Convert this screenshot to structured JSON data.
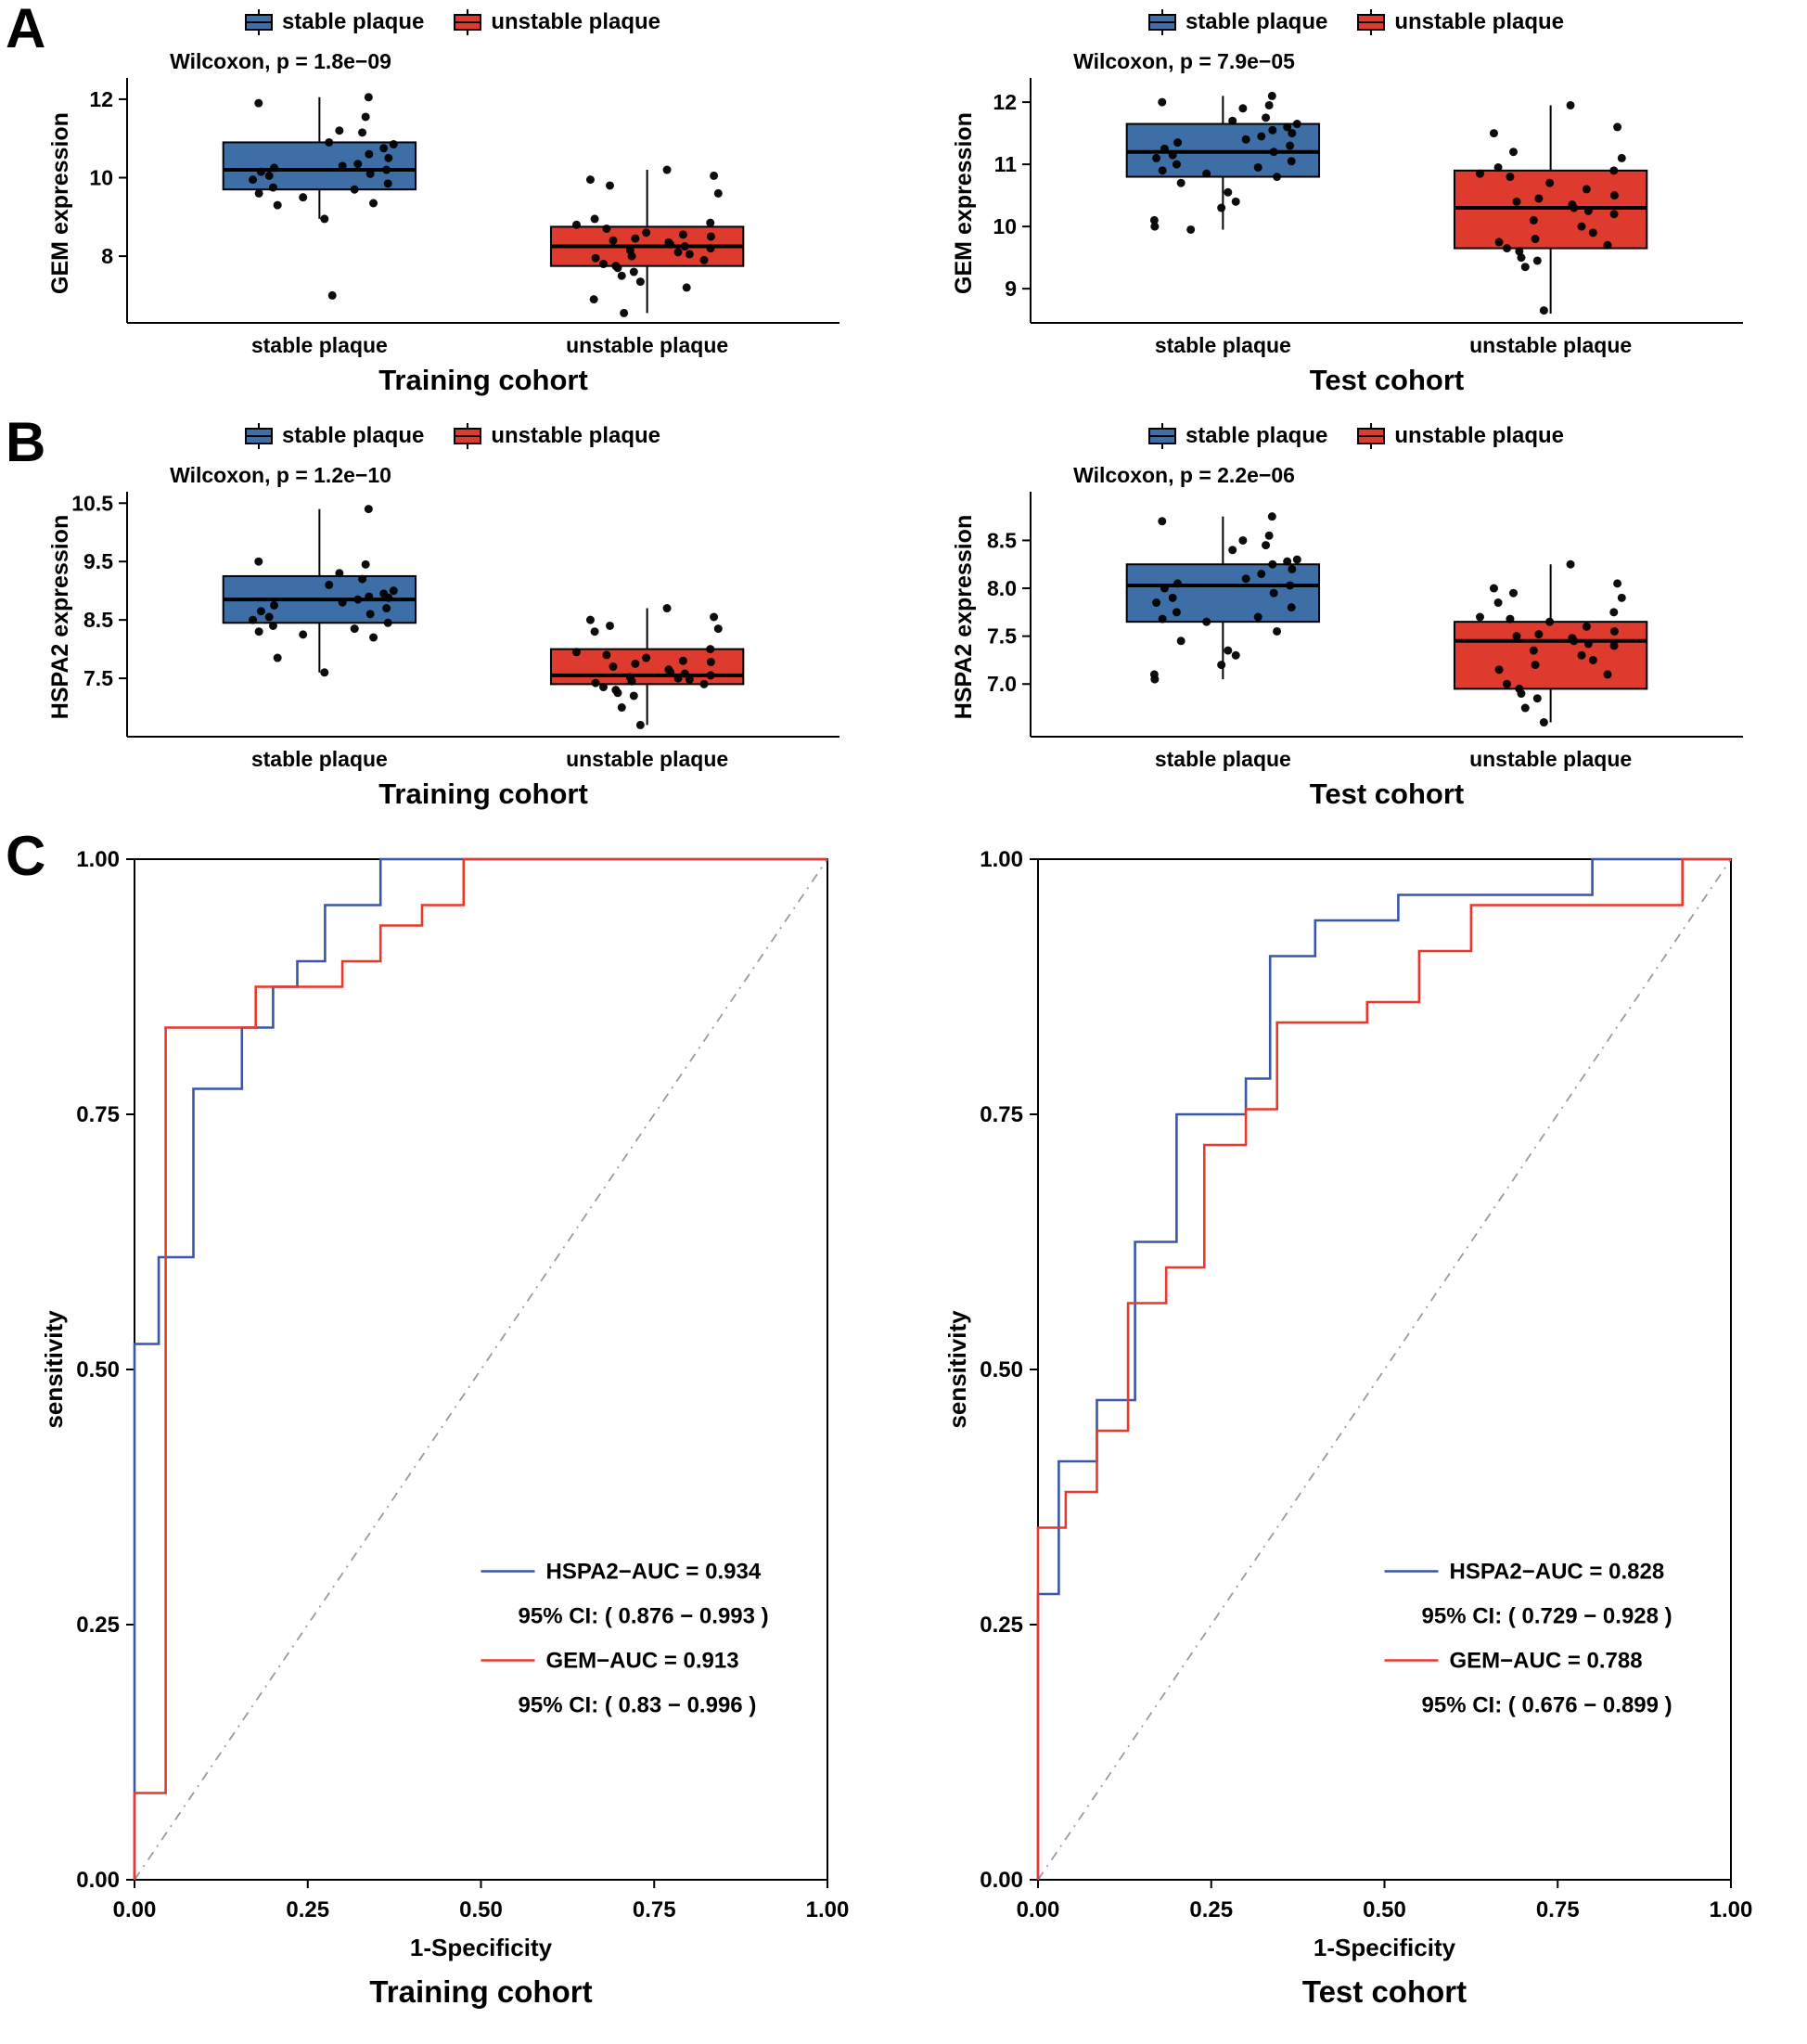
{
  "colors": {
    "stable_fill": "#3D6FA6",
    "unstable_fill": "#DE3A2E",
    "roc_hspa2": "#3A56A7",
    "roc_gem": "#E8392C",
    "diagonal": "#9B9B9B",
    "axis": "#000000"
  },
  "panels": {
    "A": "A",
    "B": "B",
    "C": "C"
  },
  "legend": {
    "stable": "stable plaque",
    "unstable": "unstable plaque"
  },
  "chart_data": [
    {
      "id": "gem-training",
      "type": "box",
      "annotation": "Wilcoxon, p = 1.8e−09",
      "ylabel": "GEM expression",
      "xlabel": "Training cohort",
      "categories": [
        "stable plaque",
        "unstable plaque"
      ],
      "ylim": [
        6.3,
        12.4
      ],
      "yticks": [
        {
          "v": 8,
          "label": "8"
        },
        {
          "v": 10,
          "label": "10"
        },
        {
          "v": 12,
          "label": "12"
        }
      ],
      "series": [
        {
          "name": "stable plaque",
          "color_key": "stable_fill",
          "box": {
            "lo": 8.95,
            "q1": 9.7,
            "median": 10.2,
            "q3": 10.9,
            "hi": 12.05
          },
          "points": [
            12.05,
            11.9,
            11.55,
            11.2,
            11.15,
            10.9,
            10.85,
            10.75,
            10.6,
            10.5,
            10.35,
            10.3,
            10.25,
            10.2,
            10.15,
            10.1,
            10.05,
            9.95,
            9.85,
            9.75,
            9.7,
            9.6,
            9.5,
            9.35,
            9.3,
            8.95,
            7.0
          ]
        },
        {
          "name": "unstable plaque",
          "color_key": "unstable_fill",
          "box": {
            "lo": 6.55,
            "q1": 7.75,
            "median": 8.25,
            "q3": 8.75,
            "hi": 10.2
          },
          "points": [
            10.2,
            10.05,
            9.95,
            9.8,
            9.6,
            8.95,
            8.85,
            8.8,
            8.7,
            8.6,
            8.55,
            8.5,
            8.45,
            8.4,
            8.35,
            8.3,
            8.25,
            8.2,
            8.15,
            8.1,
            8.05,
            8.0,
            7.95,
            7.9,
            7.8,
            7.75,
            7.7,
            7.6,
            7.5,
            7.35,
            7.2,
            6.9,
            6.55
          ]
        }
      ]
    },
    {
      "id": "gem-test",
      "type": "box",
      "annotation": "Wilcoxon, p = 7.9e−05",
      "ylabel": "GEM expression",
      "xlabel": "Test cohort",
      "categories": [
        "stable plaque",
        "unstable plaque"
      ],
      "ylim": [
        8.45,
        12.3
      ],
      "yticks": [
        {
          "v": 9,
          "label": "9"
        },
        {
          "v": 10,
          "label": "10"
        },
        {
          "v": 11,
          "label": "11"
        },
        {
          "v": 12,
          "label": "12"
        }
      ],
      "series": [
        {
          "name": "stable plaque",
          "color_key": "stable_fill",
          "box": {
            "lo": 9.95,
            "q1": 10.8,
            "median": 11.2,
            "q3": 11.65,
            "hi": 12.1
          },
          "points": [
            12.1,
            12.0,
            11.95,
            11.9,
            11.75,
            11.7,
            11.65,
            11.6,
            11.55,
            11.5,
            11.45,
            11.4,
            11.35,
            11.3,
            11.25,
            11.2,
            11.15,
            11.1,
            11.05,
            11.0,
            10.95,
            10.9,
            10.85,
            10.8,
            10.7,
            10.55,
            10.4,
            10.3,
            10.1,
            10.0,
            9.95
          ]
        },
        {
          "name": "unstable plaque",
          "color_key": "unstable_fill",
          "box": {
            "lo": 8.6,
            "q1": 9.65,
            "median": 10.3,
            "q3": 10.9,
            "hi": 11.95
          },
          "points": [
            11.95,
            11.6,
            11.5,
            11.2,
            11.1,
            10.95,
            10.9,
            10.85,
            10.8,
            10.7,
            10.6,
            10.5,
            10.45,
            10.4,
            10.35,
            10.3,
            10.25,
            10.2,
            10.1,
            10.0,
            9.9,
            9.8,
            9.75,
            9.7,
            9.65,
            9.6,
            9.5,
            9.45,
            9.35,
            8.65
          ]
        }
      ]
    },
    {
      "id": "hspa2-training",
      "type": "box",
      "annotation": "Wilcoxon, p = 1.2e−10",
      "ylabel": "HSPA2 expression",
      "xlabel": "Training cohort",
      "categories": [
        "stable plaque",
        "unstable plaque"
      ],
      "ylim": [
        6.5,
        10.6
      ],
      "yticks": [
        {
          "v": 7.5,
          "label": "7.5"
        },
        {
          "v": 8.5,
          "label": "8.5"
        },
        {
          "v": 9.5,
          "label": "9.5"
        },
        {
          "v": 10.5,
          "label": "10.5"
        }
      ],
      "series": [
        {
          "name": "stable plaque",
          "color_key": "stable_fill",
          "box": {
            "lo": 7.6,
            "q1": 8.45,
            "median": 8.85,
            "q3": 9.25,
            "hi": 10.4
          },
          "points": [
            10.4,
            9.5,
            9.45,
            9.3,
            9.2,
            9.1,
            9.0,
            8.95,
            8.9,
            8.88,
            8.85,
            8.8,
            8.75,
            8.7,
            8.65,
            8.6,
            8.55,
            8.5,
            8.45,
            8.4,
            8.35,
            8.3,
            8.25,
            8.2,
            7.85,
            7.6
          ]
        },
        {
          "name": "unstable plaque",
          "color_key": "unstable_fill",
          "box": {
            "lo": 6.7,
            "q1": 7.4,
            "median": 7.55,
            "q3": 8.0,
            "hi": 8.7
          },
          "points": [
            8.7,
            8.55,
            8.5,
            8.4,
            8.35,
            8.3,
            8.0,
            7.95,
            7.9,
            7.85,
            7.8,
            7.78,
            7.75,
            7.7,
            7.65,
            7.6,
            7.58,
            7.55,
            7.52,
            7.5,
            7.48,
            7.45,
            7.42,
            7.4,
            7.35,
            7.3,
            7.25,
            7.2,
            7.0,
            6.7
          ]
        }
      ]
    },
    {
      "id": "hspa2-test",
      "type": "box",
      "annotation": "Wilcoxon, p = 2.2e−06",
      "ylabel": "HSPA2 expression",
      "xlabel": "Test cohort",
      "categories": [
        "stable plaque",
        "unstable plaque"
      ],
      "ylim": [
        6.45,
        8.95
      ],
      "yticks": [
        {
          "v": 7.0,
          "label": "7.0"
        },
        {
          "v": 7.5,
          "label": "7.5"
        },
        {
          "v": 8.0,
          "label": "8.0"
        },
        {
          "v": 8.5,
          "label": "8.5"
        }
      ],
      "series": [
        {
          "name": "stable plaque",
          "color_key": "stable_fill",
          "box": {
            "lo": 7.05,
            "q1": 7.65,
            "median": 8.03,
            "q3": 8.25,
            "hi": 8.75
          },
          "points": [
            8.75,
            8.7,
            8.55,
            8.5,
            8.45,
            8.4,
            8.3,
            8.28,
            8.25,
            8.2,
            8.15,
            8.1,
            8.05,
            8.03,
            8.0,
            7.95,
            7.9,
            7.85,
            7.8,
            7.75,
            7.7,
            7.68,
            7.65,
            7.55,
            7.45,
            7.35,
            7.3,
            7.2,
            7.1,
            7.05
          ]
        },
        {
          "name": "unstable plaque",
          "color_key": "unstable_fill",
          "box": {
            "lo": 6.6,
            "q1": 6.95,
            "median": 7.45,
            "q3": 7.65,
            "hi": 8.25
          },
          "points": [
            8.25,
            8.05,
            8.0,
            7.95,
            7.9,
            7.85,
            7.75,
            7.7,
            7.68,
            7.65,
            7.6,
            7.55,
            7.52,
            7.5,
            7.48,
            7.45,
            7.42,
            7.4,
            7.35,
            7.3,
            7.25,
            7.2,
            7.15,
            7.1,
            7.0,
            6.95,
            6.9,
            6.85,
            6.75,
            6.6
          ]
        }
      ]
    },
    {
      "id": "roc-training",
      "type": "roc",
      "xlabel": "1-Specificity",
      "ylabel": "sensitivity",
      "title": "Training cohort",
      "xticks": [
        "0.00",
        "0.25",
        "0.50",
        "0.75",
        "1.00"
      ],
      "yticks": [
        "0.00",
        "0.25",
        "0.50",
        "0.75",
        "1.00"
      ],
      "series": [
        {
          "name": "HSPA2",
          "color_key": "roc_hspa2",
          "auc_label": "HSPA2−AUC = 0.934",
          "ci_label": "95% CI: ( 0.876 − 0.993 )",
          "points": [
            [
              0,
              0
            ],
            [
              0,
              0.525
            ],
            [
              0.035,
              0.525
            ],
            [
              0.035,
              0.61
            ],
            [
              0.085,
              0.61
            ],
            [
              0.085,
              0.775
            ],
            [
              0.155,
              0.775
            ],
            [
              0.155,
              0.835
            ],
            [
              0.2,
              0.835
            ],
            [
              0.2,
              0.875
            ],
            [
              0.235,
              0.875
            ],
            [
              0.235,
              0.9
            ],
            [
              0.275,
              0.9
            ],
            [
              0.275,
              0.955
            ],
            [
              0.355,
              0.955
            ],
            [
              0.355,
              1
            ],
            [
              1,
              1
            ]
          ]
        },
        {
          "name": "GEM",
          "color_key": "roc_gem",
          "auc_label": "GEM−AUC = 0.913",
          "ci_label": "95% CI: ( 0.83 − 0.996 )",
          "points": [
            [
              0,
              0
            ],
            [
              0,
              0.085
            ],
            [
              0.045,
              0.085
            ],
            [
              0.045,
              0.835
            ],
            [
              0.175,
              0.835
            ],
            [
              0.175,
              0.875
            ],
            [
              0.3,
              0.875
            ],
            [
              0.3,
              0.9
            ],
            [
              0.355,
              0.9
            ],
            [
              0.355,
              0.935
            ],
            [
              0.415,
              0.935
            ],
            [
              0.415,
              0.955
            ],
            [
              0.475,
              0.955
            ],
            [
              0.475,
              1
            ],
            [
              1,
              1
            ]
          ]
        }
      ]
    },
    {
      "id": "roc-test",
      "type": "roc",
      "xlabel": "1-Specificity",
      "ylabel": "sensitivity",
      "title": "Test cohort",
      "xticks": [
        "0.00",
        "0.25",
        "0.50",
        "0.75",
        "1.00"
      ],
      "yticks": [
        "0.00",
        "0.25",
        "0.50",
        "0.75",
        "1.00"
      ],
      "series": [
        {
          "name": "HSPA2",
          "color_key": "roc_hspa2",
          "auc_label": "HSPA2−AUC = 0.828",
          "ci_label": "95% CI: ( 0.729 − 0.928 )",
          "points": [
            [
              0,
              0
            ],
            [
              0,
              0.28
            ],
            [
              0.03,
              0.28
            ],
            [
              0.03,
              0.41
            ],
            [
              0.085,
              0.41
            ],
            [
              0.085,
              0.47
            ],
            [
              0.14,
              0.47
            ],
            [
              0.14,
              0.625
            ],
            [
              0.2,
              0.625
            ],
            [
              0.2,
              0.75
            ],
            [
              0.3,
              0.75
            ],
            [
              0.3,
              0.785
            ],
            [
              0.335,
              0.785
            ],
            [
              0.335,
              0.905
            ],
            [
              0.4,
              0.905
            ],
            [
              0.4,
              0.94
            ],
            [
              0.52,
              0.94
            ],
            [
              0.52,
              0.965
            ],
            [
              0.8,
              0.965
            ],
            [
              0.8,
              1
            ],
            [
              1,
              1
            ]
          ]
        },
        {
          "name": "GEM",
          "color_key": "roc_gem",
          "auc_label": "GEM−AUC = 0.788",
          "ci_label": "95% CI: ( 0.676 − 0.899 )",
          "points": [
            [
              0,
              0
            ],
            [
              0,
              0.345
            ],
            [
              0.04,
              0.345
            ],
            [
              0.04,
              0.38
            ],
            [
              0.085,
              0.38
            ],
            [
              0.085,
              0.44
            ],
            [
              0.13,
              0.44
            ],
            [
              0.13,
              0.565
            ],
            [
              0.185,
              0.565
            ],
            [
              0.185,
              0.6
            ],
            [
              0.24,
              0.6
            ],
            [
              0.24,
              0.72
            ],
            [
              0.3,
              0.72
            ],
            [
              0.3,
              0.755
            ],
            [
              0.345,
              0.755
            ],
            [
              0.345,
              0.84
            ],
            [
              0.475,
              0.84
            ],
            [
              0.475,
              0.86
            ],
            [
              0.55,
              0.86
            ],
            [
              0.55,
              0.91
            ],
            [
              0.625,
              0.91
            ],
            [
              0.625,
              0.955
            ],
            [
              0.93,
              0.955
            ],
            [
              0.93,
              1
            ],
            [
              1,
              1
            ]
          ]
        }
      ]
    }
  ]
}
